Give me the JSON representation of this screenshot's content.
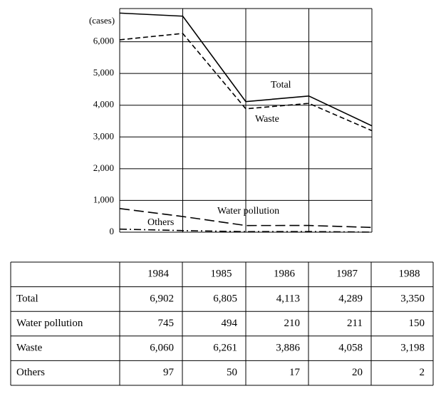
{
  "chart_data": {
    "type": "line",
    "y_label": "(cases)",
    "categories": [
      "1984",
      "1985",
      "1986",
      "1987",
      "1988"
    ],
    "series": [
      {
        "name": "Total",
        "color": "#000000",
        "style": "solid",
        "values": [
          6902,
          6805,
          4113,
          4289,
          3350
        ],
        "value_labels": [
          "6,902",
          "6,805",
          "4,113",
          "4,289",
          "3,350"
        ]
      },
      {
        "name": "Water pollution",
        "color": "#000000",
        "style": "long-dash",
        "values": [
          745,
          494,
          210,
          211,
          150
        ],
        "value_labels": [
          "745",
          "494",
          "210",
          "211",
          "150"
        ]
      },
      {
        "name": "Waste",
        "color": "#000000",
        "style": "dashed",
        "values": [
          6060,
          6261,
          3886,
          4058,
          3198
        ],
        "value_labels": [
          "6,060",
          "6,261",
          "3,886",
          "4,058",
          "3,198"
        ]
      },
      {
        "name": "Others",
        "color": "#000000",
        "style": "dash-dot",
        "values": [
          97,
          50,
          17,
          20,
          2
        ],
        "value_labels": [
          "97",
          "50",
          "17",
          "20",
          "2"
        ]
      }
    ],
    "ylim": [
      0,
      7000
    ],
    "yticks": [
      0,
      {
        "value": 1000,
        "label": "1,000"
      },
      {
        "value": 2000,
        "label": "2,000"
      },
      {
        "value": 3000,
        "label": "3,000"
      },
      {
        "value": 4000,
        "label": "4,000"
      },
      {
        "value": 5000,
        "label": "5,000"
      },
      {
        "value": 6000,
        "label": "6,000"
      }
    ],
    "grid": true
  }
}
